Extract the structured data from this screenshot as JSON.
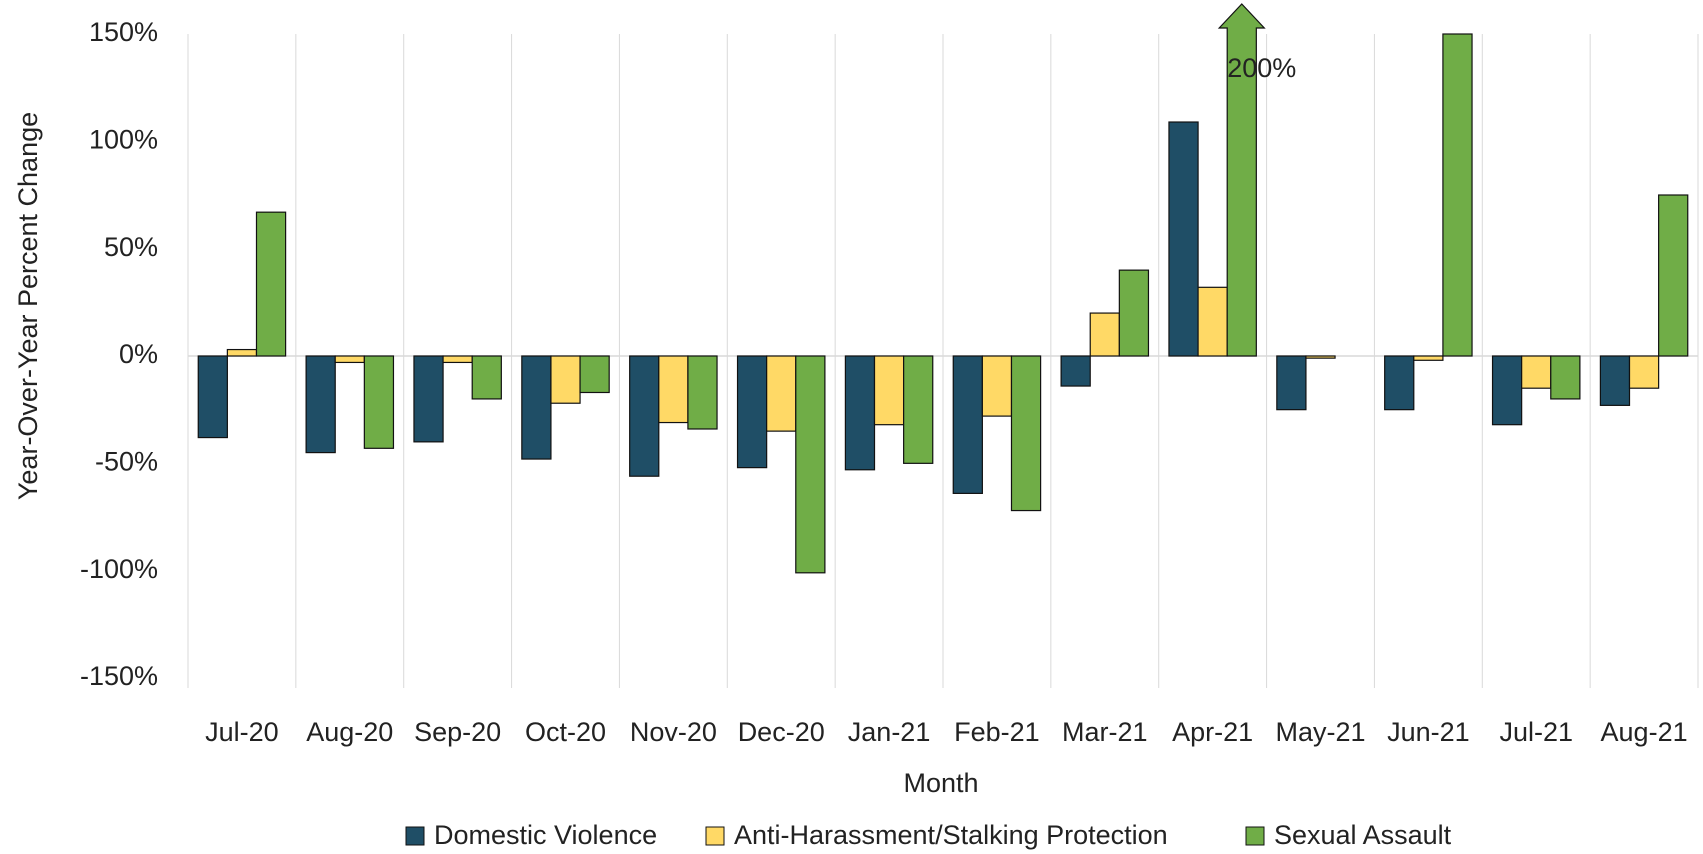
{
  "chart_data": {
    "type": "bar",
    "x_label": "Month",
    "y_label": "Year-Over-Year Percent Change",
    "categories": [
      "Jul-20",
      "Aug-20",
      "Sep-20",
      "Oct-20",
      "Nov-20",
      "Dec-20",
      "Jan-21",
      "Feb-21",
      "Mar-21",
      "Apr-21",
      "May-21",
      "Jun-21",
      "Jul-21",
      "Aug-21"
    ],
    "series": [
      {
        "name": "Domestic Violence",
        "color": "#1f4e66",
        "values": [
          -38,
          -45,
          -40,
          -48,
          -56,
          -52,
          -53,
          -64,
          -14,
          109,
          -25,
          -25,
          -32,
          -23
        ]
      },
      {
        "name": "Anti-Harassment/Stalking Protection",
        "color": "#ffd966",
        "values": [
          3,
          -3,
          -3,
          -22,
          -31,
          -35,
          -32,
          -28,
          20,
          32,
          -1,
          -2,
          -15,
          -15
        ]
      },
      {
        "name": "Sexual Assault",
        "color": "#70ad47",
        "values": [
          67,
          -43,
          -20,
          -17,
          -34,
          -101,
          -50,
          -72,
          40,
          200,
          null,
          150,
          -20,
          75
        ],
        "value_labels": [
          null,
          null,
          null,
          null,
          null,
          null,
          null,
          null,
          null,
          "200%",
          null,
          null,
          null,
          null
        ]
      }
    ],
    "ylim": [
      -150,
      150
    ],
    "yticks": [
      {
        "value": -150,
        "label": "-150%"
      },
      {
        "value": -100,
        "label": "-100%"
      },
      {
        "value": -50,
        "label": "-50%"
      },
      {
        "value": 0,
        "label": "0%"
      },
      {
        "value": 50,
        "label": "50%"
      },
      {
        "value": 100,
        "label": "100%"
      },
      {
        "value": 150,
        "label": "150%"
      }
    ],
    "legend": "bottom"
  }
}
